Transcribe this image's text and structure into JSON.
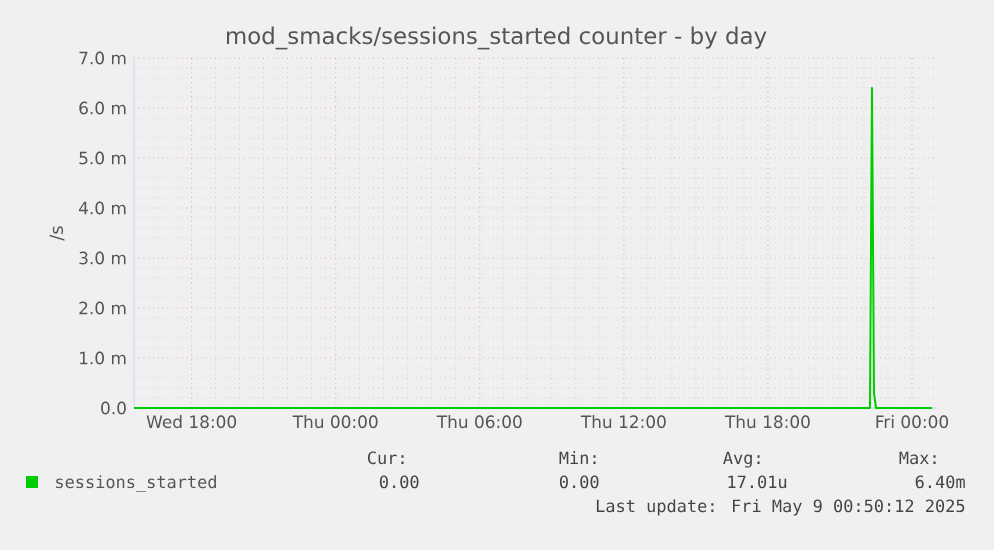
{
  "chart_data": {
    "type": "line",
    "title": "mod_smacks/sessions_started counter - by day",
    "ylabel": "/s",
    "series": [
      {
        "name": "sessions_started",
        "color": "#00cc00",
        "x": [
          "2025-05-07T15:36",
          "2025-05-08T22:15",
          "2025-05-08T22:20",
          "2025-05-08T22:25",
          "2025-05-08T22:30",
          "2025-05-09T00:50"
        ],
        "values": [
          0,
          0,
          6.4,
          0.3,
          0,
          0
        ]
      }
    ],
    "xlim": [
      "2025-05-07T15:36",
      "2025-05-09T01:00"
    ],
    "xticks": [
      {
        "value": "2025-05-07T18:00",
        "label": "Wed 18:00"
      },
      {
        "value": "2025-05-08T00:00",
        "label": "Thu 00:00"
      },
      {
        "value": "2025-05-08T06:00",
        "label": "Thu 06:00"
      },
      {
        "value": "2025-05-08T12:00",
        "label": "Thu 12:00"
      },
      {
        "value": "2025-05-08T18:00",
        "label": "Thu 18:00"
      },
      {
        "value": "2025-05-09T00:00",
        "label": "Fri 00:00"
      }
    ],
    "ylim": [
      0,
      7
    ],
    "yticks": [
      {
        "value": 0,
        "label": "0.0"
      },
      {
        "value": 1,
        "label": "1.0 m"
      },
      {
        "value": 2,
        "label": "2.0 m"
      },
      {
        "value": 3,
        "label": "3.0 m"
      },
      {
        "value": 4,
        "label": "4.0 m"
      },
      {
        "value": 5,
        "label": "5.0 m"
      },
      {
        "value": 6,
        "label": "6.0 m"
      },
      {
        "value": 7,
        "label": "7.0 m"
      }
    ],
    "grid": true,
    "legend": "bottom",
    "marker": "none",
    "line_style": "solid",
    "annotations": [
      "Cur:",
      "Min:",
      "Avg:",
      "Max:",
      "0.00",
      "0.00",
      "17.01u",
      "6.40m",
      "Last update: Fri May  9 00:50:12 2025"
    ]
  }
}
